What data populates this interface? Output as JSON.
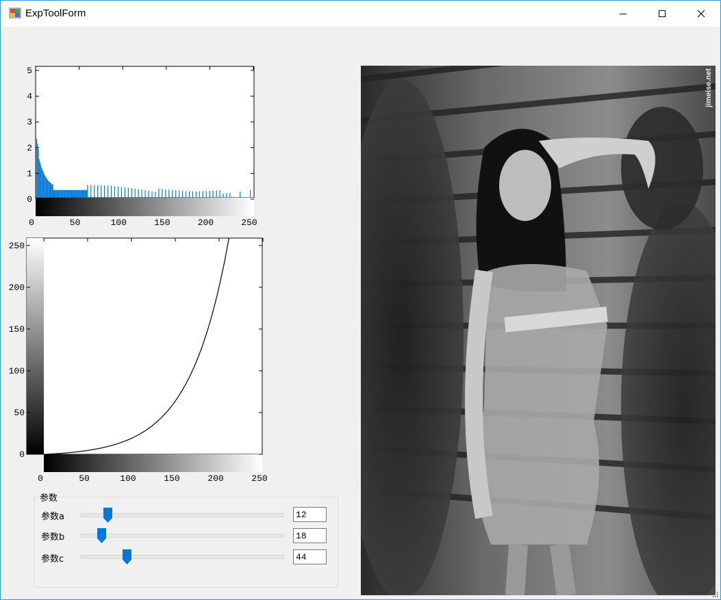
{
  "window": {
    "title": "ExpToolForm"
  },
  "histogram": {
    "y_ticks": [
      "0",
      "1",
      "2",
      "3",
      "4",
      "5"
    ],
    "x_ticks": [
      "0",
      "50",
      "100",
      "150",
      "200",
      "250"
    ],
    "bar_color": "#0078d7"
  },
  "curve": {
    "y_ticks": [
      "0",
      "50",
      "100",
      "150",
      "200",
      "250"
    ],
    "x_ticks": [
      "0",
      "50",
      "100",
      "150",
      "200",
      "250"
    ]
  },
  "params": {
    "group_title": "参数",
    "items": [
      {
        "label": "参数a",
        "value": "12",
        "fraction": 0.135
      },
      {
        "label": "参数b",
        "value": "18",
        "fraction": 0.105
      },
      {
        "label": "参数c",
        "value": "44",
        "fraction": 0.23
      }
    ]
  },
  "image": {
    "watermark": "jimeise.net"
  },
  "colors": {
    "accent": "#0078d7",
    "border": "#2b9ad4"
  }
}
